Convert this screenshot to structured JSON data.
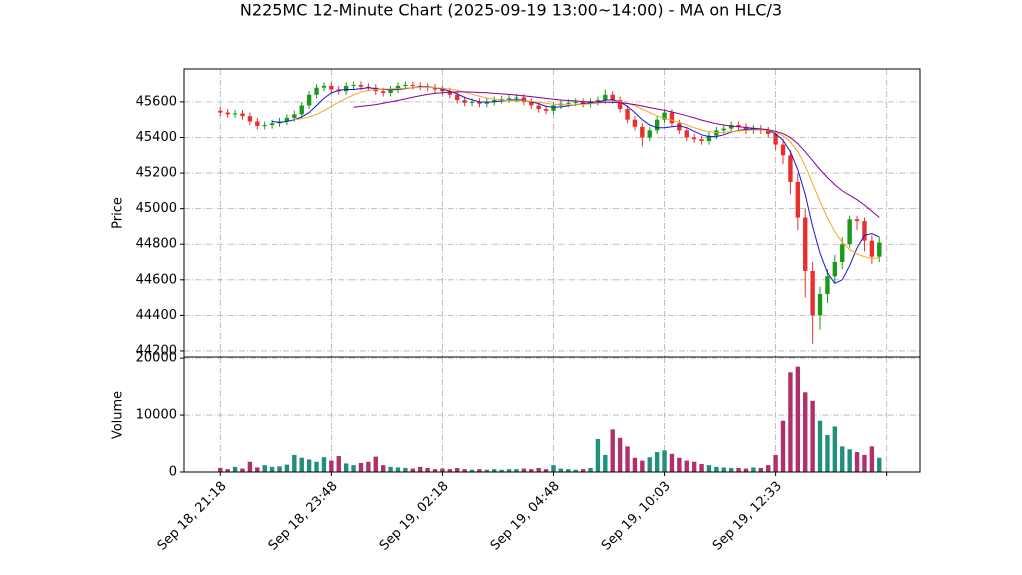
{
  "chart_data": [
    {
      "type": "candlestick",
      "title": "N225MC 12-Minute Chart (2025-09-19 13:00~14:00) - MA on HLC/3",
      "ylabel": "Price",
      "grid": true,
      "up_color": "#1a9a1a",
      "down_color": "#e8312f",
      "xlim": [
        -4.9,
        94.5
      ],
      "ylim": [
        44166,
        45785
      ],
      "yticks": [
        44200,
        44400,
        44600,
        44800,
        45000,
        45200,
        45400,
        45600
      ],
      "open": [
        45550,
        45540,
        45530,
        45535,
        45520,
        45490,
        45465,
        45470,
        45480,
        45490,
        45510,
        45530,
        45580,
        45640,
        45680,
        45690,
        45670,
        45660,
        45690,
        45695,
        45685,
        45680,
        45660,
        45650,
        45670,
        45690,
        45695,
        45690,
        45685,
        45680,
        45670,
        45660,
        45640,
        45610,
        45595,
        45600,
        45590,
        45600,
        45610,
        45615,
        45620,
        45625,
        45600,
        45580,
        45560,
        45550,
        45580,
        45590,
        45595,
        45600,
        45590,
        45600,
        45610,
        45640,
        45610,
        45560,
        45500,
        45460,
        45400,
        45440,
        45500,
        45540,
        45480,
        45440,
        45400,
        45390,
        45380,
        45410,
        45440,
        45450,
        45470,
        45460,
        45440,
        45450,
        45440,
        45420,
        45360,
        45300,
        45150,
        44950,
        44650,
        44400,
        44520,
        44620,
        44700,
        44800,
        44940,
        44930,
        44820,
        44730
      ],
      "high": [
        45570,
        45560,
        45555,
        45555,
        45540,
        45510,
        45490,
        45500,
        45510,
        45530,
        45550,
        45600,
        45660,
        45700,
        45710,
        45710,
        45690,
        45710,
        45715,
        45715,
        45705,
        45700,
        45680,
        45690,
        45710,
        45715,
        45715,
        45710,
        45705,
        45700,
        45690,
        45680,
        45660,
        45630,
        45620,
        45620,
        45620,
        45630,
        45635,
        45640,
        45645,
        45645,
        45620,
        45600,
        45580,
        45600,
        45610,
        45615,
        45620,
        45620,
        45620,
        45630,
        45670,
        45660,
        45630,
        45580,
        45520,
        45480,
        45460,
        45520,
        45560,
        45560,
        45500,
        45460,
        45420,
        45410,
        45430,
        45460,
        45470,
        45490,
        45490,
        45480,
        45470,
        45470,
        45460,
        45440,
        45390,
        45330,
        45200,
        45000,
        44700,
        44560,
        44660,
        44740,
        44840,
        44960,
        44960,
        44950,
        44850,
        44840
      ],
      "low": [
        45520,
        45510,
        45510,
        45500,
        45470,
        45445,
        45445,
        45450,
        45460,
        45470,
        45490,
        45510,
        45560,
        45620,
        45660,
        45650,
        45640,
        45640,
        45670,
        45665,
        45660,
        45640,
        45630,
        45630,
        45650,
        45670,
        45670,
        45665,
        45660,
        45650,
        45640,
        45620,
        45590,
        45575,
        45575,
        45570,
        45570,
        45580,
        45590,
        45595,
        45600,
        45580,
        45560,
        45540,
        45530,
        45530,
        45560,
        45570,
        45575,
        45570,
        45570,
        45580,
        45590,
        45590,
        45540,
        45480,
        45440,
        45350,
        45380,
        45420,
        45480,
        45460,
        45420,
        45380,
        45370,
        45360,
        45360,
        45390,
        45420,
        45430,
        45440,
        45420,
        45420,
        45420,
        45400,
        45330,
        45250,
        45080,
        44880,
        44500,
        44240,
        44320,
        44470,
        44580,
        44660,
        44780,
        44880,
        44760,
        44690,
        44700
      ],
      "close": [
        45540,
        45530,
        45535,
        45520,
        45490,
        45465,
        45470,
        45480,
        45490,
        45510,
        45530,
        45580,
        45640,
        45680,
        45690,
        45670,
        45660,
        45690,
        45695,
        45685,
        45680,
        45660,
        45650,
        45670,
        45690,
        45695,
        45690,
        45685,
        45680,
        45670,
        45660,
        45640,
        45610,
        45595,
        45600,
        45590,
        45600,
        45610,
        45615,
        45620,
        45625,
        45600,
        45580,
        45560,
        45550,
        45580,
        45590,
        45595,
        45600,
        45590,
        45600,
        45610,
        45640,
        45610,
        45560,
        45500,
        45460,
        45400,
        45440,
        45500,
        45540,
        45480,
        45440,
        45400,
        45390,
        45380,
        45410,
        45440,
        45450,
        45470,
        45460,
        45440,
        45450,
        45440,
        45420,
        45360,
        45300,
        45150,
        44950,
        44650,
        44400,
        44520,
        44620,
        44700,
        44800,
        44940,
        44930,
        44820,
        44730,
        44810
      ],
      "series": [
        {
          "color": "#1515d8",
          "values": [
            null,
            null,
            null,
            null,
            null,
            null,
            null,
            45490,
            45485,
            45490,
            45500,
            45515,
            45540,
            45580,
            45620,
            45650,
            45665,
            45670,
            45670,
            45675,
            45680,
            45675,
            45670,
            45668,
            45670,
            45675,
            45680,
            45685,
            45685,
            45680,
            45672,
            45660,
            45645,
            45625,
            45612,
            45600,
            45598,
            45600,
            45605,
            45610,
            45612,
            45610,
            45600,
            45590,
            45575,
            45570,
            45572,
            45578,
            45585,
            45590,
            45595,
            45600,
            45610,
            45612,
            45600,
            45575,
            45540,
            45500,
            45470,
            45455,
            45455,
            45460,
            45465,
            45455,
            45435,
            45415,
            45405,
            45405,
            45415,
            45430,
            45440,
            45445,
            45448,
            45447,
            45440,
            45420,
            45385,
            45320,
            45220,
            45080,
            44900,
            44750,
            44640,
            44580,
            44600,
            44680,
            44780,
            44850,
            44860,
            44840
          ]
        },
        {
          "color": "#f5a623",
          "values": [
            null,
            null,
            null,
            null,
            null,
            null,
            null,
            null,
            null,
            null,
            45500,
            45505,
            45515,
            45530,
            45550,
            45575,
            45600,
            45620,
            45640,
            45655,
            45665,
            45670,
            45672,
            45673,
            45675,
            45677,
            45680,
            45682,
            45682,
            45680,
            45677,
            45672,
            45665,
            45655,
            45643,
            45632,
            45622,
            45615,
            45610,
            45608,
            45607,
            45606,
            45603,
            45598,
            45592,
            45587,
            45584,
            45583,
            45584,
            45586,
            45589,
            45593,
            45598,
            45602,
            45600,
            45592,
            45578,
            45560,
            45540,
            45522,
            45508,
            45497,
            45485,
            45470,
            45455,
            45442,
            45432,
            45428,
            45428,
            45432,
            45437,
            45440,
            45442,
            45443,
            45440,
            45430,
            45410,
            45375,
            45320,
            45240,
            45140,
            45040,
            44950,
            44870,
            44810,
            44770,
            44745,
            44730,
            44720,
            44725
          ]
        },
        {
          "color": "#8b008b",
          "values": [
            null,
            null,
            null,
            null,
            null,
            null,
            null,
            null,
            null,
            null,
            null,
            null,
            null,
            null,
            null,
            null,
            null,
            null,
            45570,
            45575,
            45580,
            45585,
            45592,
            45600,
            45608,
            45617,
            45626,
            45635,
            45642,
            45648,
            45652,
            45655,
            45656,
            45656,
            45655,
            45653,
            45651,
            45648,
            45645,
            45642,
            45638,
            45634,
            45630,
            45625,
            45620,
            45615,
            45611,
            45608,
            45605,
            45602,
            45600,
            45599,
            45598,
            45597,
            45595,
            45591,
            45585,
            45577,
            45568,
            45560,
            45552,
            45543,
            45533,
            45522,
            45510,
            45498,
            45487,
            45477,
            45470,
            45464,
            45460,
            45456,
            45452,
            45448,
            45443,
            45435,
            45422,
            45400,
            45365,
            45320,
            45270,
            45220,
            45175,
            45135,
            45100,
            45075,
            45050,
            45020,
            44985,
            44950
          ]
        }
      ]
    },
    {
      "type": "bar",
      "ylabel": "Volume",
      "grid": true,
      "up_color": "#1f8f7f",
      "down_color": "#b0306a",
      "xlim": [
        -4.9,
        94.5
      ],
      "ylim": [
        0,
        20200
      ],
      "yticks": [
        0,
        10000,
        20000
      ],
      "xticks": [
        {
          "value": 0,
          "label": "Sep 18, 21:18"
        },
        {
          "value": 15,
          "label": "Sep 18, 23:48"
        },
        {
          "value": 30,
          "label": "Sep 19, 02:18"
        },
        {
          "value": 45,
          "label": "Sep 19, 04:48"
        },
        {
          "value": 60,
          "label": "Sep 19, 10:03"
        },
        {
          "value": 75,
          "label": "Sep 19, 12:33"
        },
        {
          "value": 90,
          "label": null
        }
      ],
      "values": [
        700,
        500,
        900,
        600,
        1800,
        800,
        1200,
        900,
        1000,
        1300,
        3000,
        2500,
        2200,
        1800,
        2600,
        2000,
        2800,
        1500,
        1200,
        1600,
        1800,
        2700,
        1200,
        900,
        800,
        700,
        600,
        900,
        700,
        500,
        600,
        500,
        700,
        500,
        400,
        500,
        400,
        500,
        400,
        500,
        500,
        600,
        500,
        700,
        500,
        1200,
        600,
        500,
        400,
        500,
        700,
        5800,
        3000,
        7500,
        6000,
        4500,
        2500,
        2000,
        2600,
        3500,
        3800,
        3200,
        2500,
        2000,
        1800,
        1400,
        1200,
        900,
        800,
        700,
        700,
        600,
        800,
        700,
        1200,
        3000,
        9000,
        17500,
        18500,
        14000,
        12500,
        9000,
        6500,
        8000,
        4500,
        4000,
        3500,
        3000,
        4500,
        2500
      ]
    }
  ]
}
